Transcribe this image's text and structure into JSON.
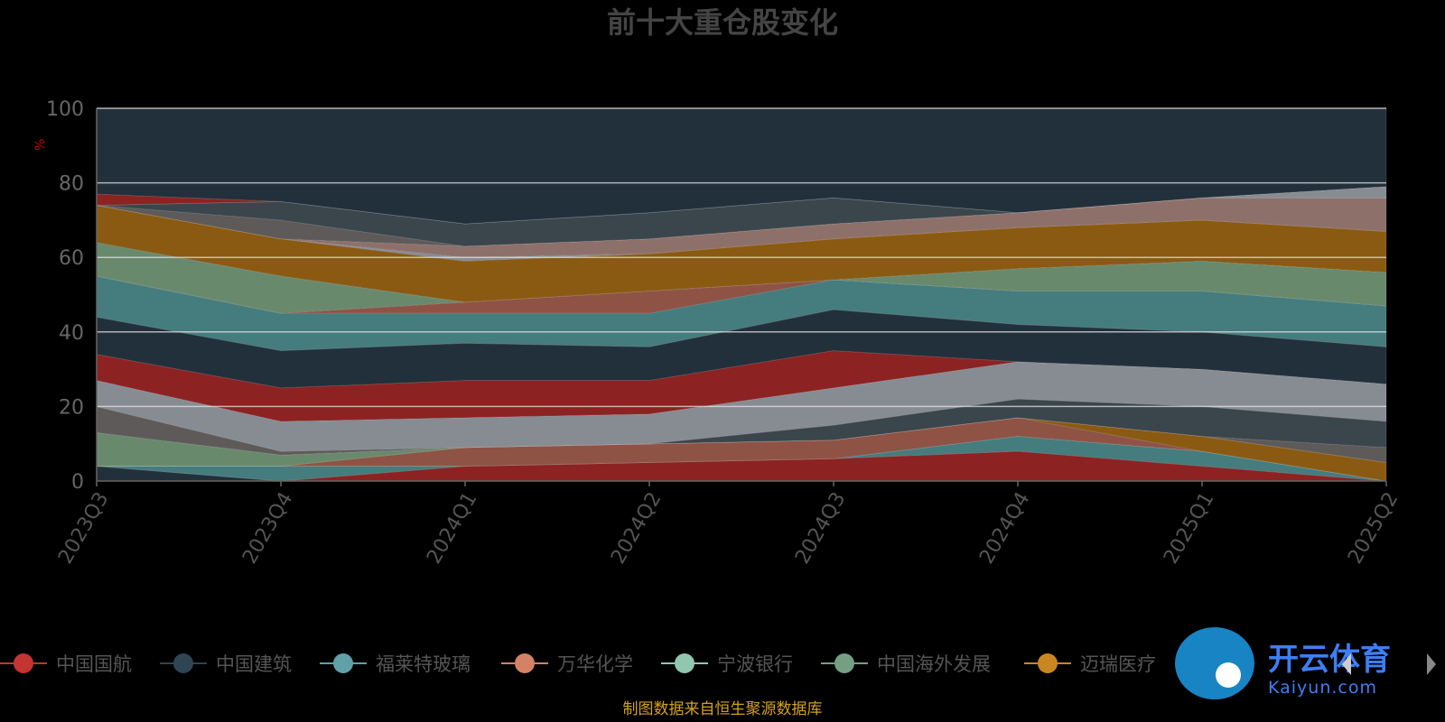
{
  "chart_data": {
    "type": "area",
    "title": "前十大重仓股变化",
    "ylabel": "%",
    "ylim": [
      0,
      100
    ],
    "yticks": [
      0,
      20,
      40,
      60,
      80,
      100
    ],
    "categories": [
      "2023Q3",
      "2023Q4",
      "2024Q1",
      "2024Q2",
      "2024Q3",
      "2024Q4",
      "2025Q1",
      "2025Q2"
    ],
    "layers": [
      {
        "color": "#22303b",
        "lo": [
          0,
          0,
          0,
          0,
          0,
          0,
          0,
          0
        ],
        "hi": [
          4,
          0,
          0,
          0,
          0,
          0,
          0,
          0
        ]
      },
      {
        "color": "#8c2222",
        "lo": [
          4,
          0,
          0,
          0,
          0,
          0,
          0,
          0
        ],
        "hi": [
          4,
          0,
          4,
          5,
          6,
          8,
          4,
          0
        ]
      },
      {
        "color": "#457c7e",
        "lo": [
          4,
          0,
          4,
          5,
          6,
          8,
          4,
          0
        ],
        "hi": [
          4,
          4,
          4,
          5,
          6,
          12,
          8,
          0
        ]
      },
      {
        "color": "#8a7a3a",
        "lo": [
          4,
          4,
          4,
          5,
          6,
          12,
          8,
          0
        ],
        "hi": [
          4,
          4,
          4,
          5,
          6,
          12,
          8,
          0
        ]
      },
      {
        "color": "#8e5345",
        "lo": [
          4,
          4,
          4,
          5,
          6,
          12,
          8,
          0
        ],
        "hi": [
          4,
          4,
          9,
          10,
          11,
          17,
          8,
          0
        ]
      },
      {
        "color": "#8a5a12",
        "lo": [
          4,
          4,
          9,
          10,
          11,
          17,
          8,
          0
        ],
        "hi": [
          4,
          4,
          9,
          10,
          11,
          17,
          12,
          5
        ]
      },
      {
        "color": "#69896d",
        "lo": [
          4,
          4,
          9,
          10,
          11,
          17,
          12,
          5
        ],
        "hi": [
          13,
          7,
          9,
          10,
          11,
          17,
          12,
          5
        ]
      },
      {
        "color": "#5e5a5a",
        "lo": [
          13,
          7,
          9,
          10,
          11,
          17,
          12,
          5
        ],
        "hi": [
          20,
          8,
          9,
          10,
          11,
          17,
          12,
          9
        ]
      },
      {
        "color": "#3a454c",
        "lo": [
          20,
          8,
          9,
          10,
          11,
          17,
          12,
          9
        ],
        "hi": [
          20,
          8,
          9,
          10,
          15,
          22,
          20,
          16
        ]
      },
      {
        "color": "#878b92",
        "lo": [
          20,
          8,
          9,
          10,
          15,
          22,
          20,
          16
        ],
        "hi": [
          27,
          16,
          17,
          18,
          25,
          32,
          30,
          26
        ]
      },
      {
        "color": "#8c2222",
        "lo": [
          27,
          16,
          17,
          18,
          25,
          32,
          30,
          26
        ],
        "hi": [
          34,
          25,
          27,
          27,
          35,
          32,
          30,
          26
        ]
      },
      {
        "color": "#22303b",
        "lo": [
          34,
          25,
          27,
          27,
          35,
          32,
          30,
          26
        ],
        "hi": [
          44,
          35,
          37,
          36,
          46,
          42,
          40,
          36
        ]
      },
      {
        "color": "#457c7e",
        "lo": [
          44,
          35,
          37,
          36,
          46,
          42,
          40,
          36
        ],
        "hi": [
          55,
          45,
          45,
          45,
          54,
          51,
          51,
          47
        ]
      },
      {
        "color": "#8e5345",
        "lo": [
          55,
          45,
          45,
          45,
          54,
          51,
          51,
          47
        ],
        "hi": [
          55,
          45,
          48,
          51,
          54,
          51,
          51,
          47
        ]
      },
      {
        "color": "#69896d",
        "lo": [
          55,
          45,
          48,
          51,
          54,
          51,
          51,
          47
        ],
        "hi": [
          64,
          55,
          48,
          51,
          54,
          57,
          59,
          56
        ]
      },
      {
        "color": "#8a5a12",
        "lo": [
          64,
          55,
          48,
          51,
          54,
          57,
          59,
          56
        ],
        "hi": [
          74,
          65,
          59,
          61,
          65,
          68,
          70,
          67
        ]
      },
      {
        "color": "#878b92",
        "lo": [
          74,
          65,
          59,
          61,
          65,
          68,
          70,
          67
        ],
        "hi": [
          74,
          65,
          60,
          61,
          65,
          68,
          70,
          67
        ]
      },
      {
        "color": "#8e706a",
        "lo": [
          74,
          65,
          60,
          61,
          65,
          68,
          70,
          67
        ],
        "hi": [
          74,
          65,
          63,
          65,
          69,
          72,
          76,
          76
        ]
      },
      {
        "color": "#5e5a5a",
        "lo": [
          74,
          65,
          63,
          65,
          69,
          72,
          76,
          76
        ],
        "hi": [
          74,
          70,
          63,
          65,
          69,
          72,
          76,
          76
        ]
      },
      {
        "color": "#3a454c",
        "lo": [
          74,
          70,
          63,
          65,
          69,
          72,
          76,
          76
        ],
        "hi": [
          74,
          75,
          69,
          72,
          76,
          72,
          76,
          76
        ]
      },
      {
        "color": "#878b92",
        "lo": [
          74,
          75,
          69,
          72,
          76,
          72,
          76,
          76
        ],
        "hi": [
          74,
          75,
          69,
          72,
          76,
          72,
          76,
          79
        ]
      },
      {
        "color": "#8c2222",
        "lo": [
          74,
          75,
          69,
          72,
          76,
          72,
          76,
          79
        ],
        "hi": [
          77,
          75,
          69,
          72,
          76,
          72,
          76,
          79
        ]
      },
      {
        "color": "#22303b",
        "lo": [
          77,
          75,
          69,
          72,
          76,
          72,
          76,
          79
        ],
        "hi": [
          100,
          100,
          100,
          100,
          100,
          100,
          100,
          100
        ]
      }
    ],
    "legend": [
      {
        "name": "中国国航",
        "color": "#c23531"
      },
      {
        "name": "中国建筑",
        "color": "#2f4554"
      },
      {
        "name": "福莱特玻璃",
        "color": "#61a0a8"
      },
      {
        "name": "万华化学",
        "color": "#d48265"
      },
      {
        "name": "宁波银行",
        "color": "#91c7ae"
      },
      {
        "name": "中国海外发展",
        "color": "#749f83"
      },
      {
        "name": "迈瑞医疗",
        "color": "#ca8622"
      }
    ],
    "source": "制图数据来自恒生聚源数据库"
  },
  "watermark": {
    "text": "开云体育",
    "sub": "Kaiyun.com"
  }
}
